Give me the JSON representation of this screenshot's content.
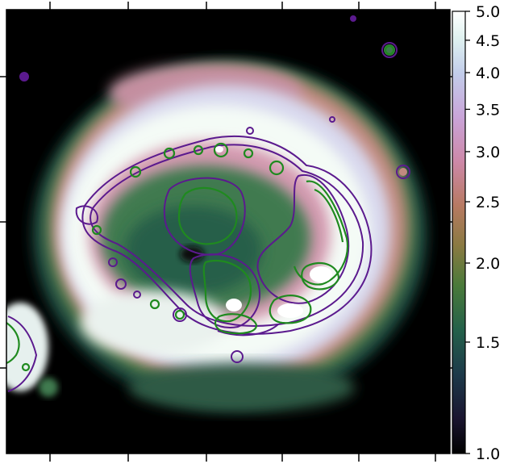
{
  "figure": {
    "colormap": "cubehelix",
    "colorbar": {
      "scale": "log",
      "range": [
        1.0,
        5.0
      ],
      "ticks": [
        {
          "value": 5.0,
          "label": "5.0"
        },
        {
          "value": 4.5,
          "label": "4.5"
        },
        {
          "value": 4.0,
          "label": "4.0"
        },
        {
          "value": 3.5,
          "label": "3.5"
        },
        {
          "value": 3.0,
          "label": "3.0"
        },
        {
          "value": 2.5,
          "label": "2.5"
        },
        {
          "value": 2.0,
          "label": "2.0"
        },
        {
          "value": 1.5,
          "label": "1.5"
        },
        {
          "value": 1.0,
          "label": "1.0"
        }
      ]
    },
    "contour_colors": {
      "outer": "#5b1a8e",
      "inner": "#1f8a1f"
    },
    "background_color": "#000000"
  }
}
